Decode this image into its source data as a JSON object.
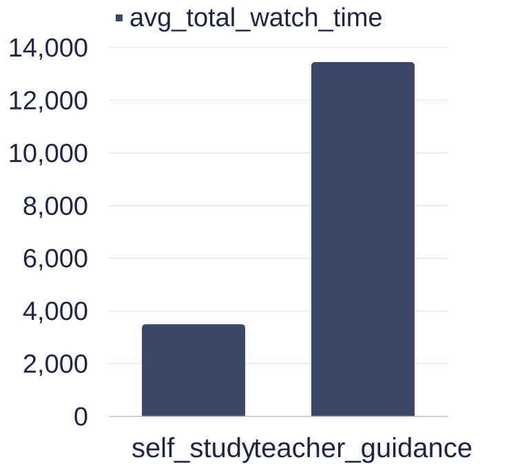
{
  "chart_data": {
    "type": "bar",
    "categories": [
      "self_study",
      "teacher_guidance"
    ],
    "series": [
      {
        "name": "avg_total_watch_time",
        "values": [
          3500,
          13450
        ]
      }
    ],
    "ylim": [
      0,
      14000
    ],
    "yticks": [
      0,
      2000,
      4000,
      6000,
      8000,
      10000,
      12000,
      14000
    ],
    "ytick_labels": [
      "0",
      "2,000",
      "4,000",
      "6,000",
      "8,000",
      "10,000",
      "12,000",
      "14,000"
    ],
    "grid": true,
    "legend_position": "top",
    "colors": {
      "bar": "#3b4766",
      "text": "#1c2642",
      "grid": "#d9d9d9"
    }
  }
}
